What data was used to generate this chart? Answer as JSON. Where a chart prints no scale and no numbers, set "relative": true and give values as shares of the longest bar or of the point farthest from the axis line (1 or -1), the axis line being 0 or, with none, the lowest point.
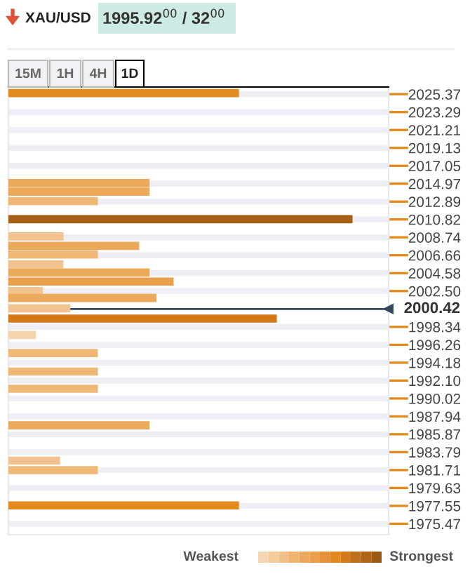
{
  "chart_data": {
    "type": "bar",
    "orientation": "horizontal",
    "relative": true,
    "title": "XAU/USD",
    "subtitle": "1995.92$^{00}$ / 32$^{00}$",
    "annotations": [
      "15M",
      "1H",
      "4H",
      "1D",
      "Weakest",
      "Strongest"
    ],
    "x": [
      2025.5,
      2015.05,
      2014.05,
      2012.95,
      2010.85,
      2008.85,
      2007.75,
      2006.75,
      2005.6,
      2004.65,
      2003.6,
      2002.5,
      2001.7,
      2000.5,
      1999.3,
      1997.4,
      1995.3,
      1993.15,
      1991.15,
      1986.9,
      1982.8,
      1981.7,
      1977.6
    ],
    "values": [
      0.67,
      0.41,
      0.41,
      0.26,
      1.0,
      0.16,
      0.38,
      0.26,
      0.16,
      0.41,
      0.48,
      0.1,
      0.43,
      0.18,
      0.78,
      0.08,
      0.26,
      0.26,
      0.26,
      0.41,
      0.15,
      0.26,
      0.67
    ],
    "colors": [
      "#e38a1e",
      "#eba95c",
      "#eba95c",
      "#efb876",
      "#a35f16",
      "#f2c38e",
      "#eba95c",
      "#efb876",
      "#f2c38e",
      "#eba95c",
      "#e9a04c",
      "#f2c38e",
      "#eba95c",
      "#f2c38e",
      "#d27818",
      "#f5d3ac",
      "#efb876",
      "#efb876",
      "#efb876",
      "#eba95c",
      "#f2c38e",
      "#efb876",
      "#e38a1e"
    ],
    "ylim": [
      1974.2,
      2026.2
    ],
    "yticks": [
      2025.37,
      2023.29,
      2021.21,
      2019.13,
      2017.05,
      2014.97,
      2012.89,
      2010.82,
      2008.74,
      2006.66,
      2004.58,
      {
        "value": 2002.5,
        "label": "2002.50"
      },
      1998.34,
      1996.26,
      1994.18,
      {
        "value": 1992.1,
        "label": "1992.10"
      },
      1990.02,
      1987.94,
      1985.87,
      1983.79,
      1981.71,
      1979.63,
      1977.55,
      1975.47
    ],
    "ref_lines": [
      {
        "axis": "y",
        "value": 2000.42,
        "label": "2000.42",
        "color": "#34495e"
      }
    ],
    "grid": "y"
  }
}
